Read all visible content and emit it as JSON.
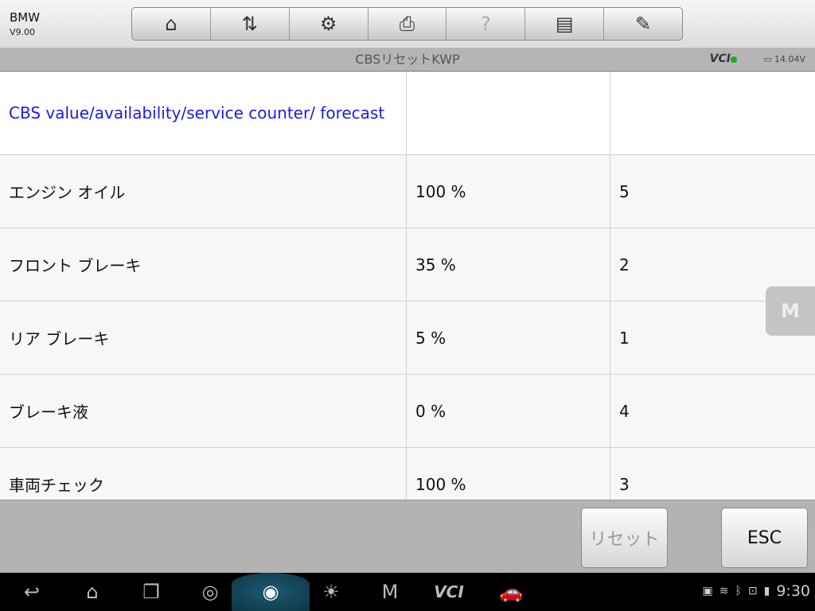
{
  "header": {
    "app_name": "BMW",
    "version": "V9.00"
  },
  "toolbar": [
    {
      "icon": "home-m-icon",
      "glyph": "⌂"
    },
    {
      "icon": "vehicle-swap-icon",
      "glyph": "⇅"
    },
    {
      "icon": "settings-gear-icon",
      "glyph": "⚙"
    },
    {
      "icon": "printer-icon",
      "glyph": "⎙"
    },
    {
      "icon": "help-icon",
      "glyph": "?"
    },
    {
      "icon": "save-icon",
      "glyph": "▤"
    },
    {
      "icon": "edit-pencil-icon",
      "glyph": "✎"
    }
  ],
  "title_bar": {
    "title": "CBSリセットKWP",
    "vci": "VCI",
    "voltage": "14.04V"
  },
  "table": {
    "header": [
      "CBS value/availability/service counter/ forecast",
      "",
      ""
    ],
    "rows": [
      [
        "エンジン オイル",
        "100 %",
        "5"
      ],
      [
        "フロント ブレーキ",
        "35 %",
        "2"
      ],
      [
        "リア ブレーキ",
        "5 %",
        "1"
      ],
      [
        "ブレーキ液",
        "0 %",
        "4"
      ],
      [
        "車両チェック",
        "100 %",
        "3"
      ]
    ]
  },
  "buttons": {
    "reset": "リセット",
    "esc": "ESC"
  },
  "floating": {
    "label": "M"
  },
  "navbar": {
    "vci": "VCI",
    "time": "9:30"
  },
  "colors": {
    "link": "#1a1aee",
    "title_bar": "#b5b5b5"
  }
}
